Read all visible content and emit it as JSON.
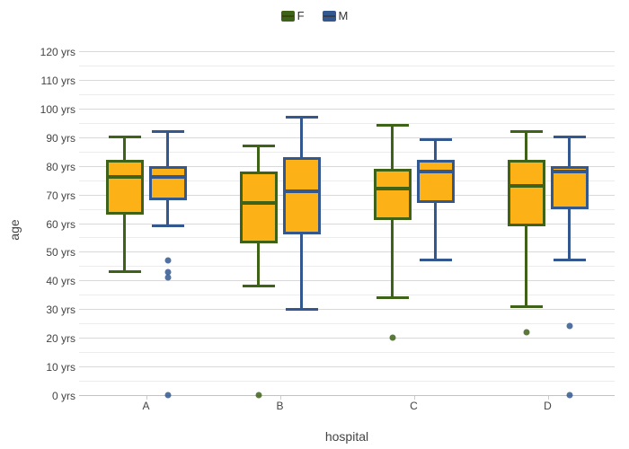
{
  "chart_data": {
    "type": "box",
    "title": "",
    "xlabel": "hospital",
    "ylabel": "age",
    "categories": [
      "A",
      "B",
      "C",
      "D"
    ],
    "ylim": [
      0,
      120
    ],
    "ytick_step": 10,
    "ytick_minor_step": 5,
    "ytick_suffix": " yrs",
    "grid": true,
    "legend_position": "top-center",
    "colors": {
      "box_fill": "#fcb116",
      "series_f_line": "#3d6218",
      "series_m_line": "#32588f",
      "gridline_major": "#d9d9d9",
      "gridline_minor": "#ececec"
    },
    "series": [
      {
        "name": "F",
        "line_color": "#3d6218",
        "fill_color": "#fcb116",
        "boxes": [
          {
            "category": "A",
            "low": 43,
            "q1": 63,
            "median": 76,
            "q3": 82,
            "high": 90,
            "outliers": []
          },
          {
            "category": "B",
            "low": 38,
            "q1": 53,
            "median": 67,
            "q3": 78,
            "high": 87,
            "outliers": [
              0
            ]
          },
          {
            "category": "C",
            "low": 34,
            "q1": 61,
            "median": 72,
            "q3": 79,
            "high": 94,
            "outliers": [
              20
            ]
          },
          {
            "category": "D",
            "low": 31,
            "q1": 59,
            "median": 73,
            "q3": 82,
            "high": 92,
            "outliers": [
              22
            ]
          }
        ]
      },
      {
        "name": "M",
        "line_color": "#32588f",
        "fill_color": "#fcb116",
        "boxes": [
          {
            "category": "A",
            "low": 59,
            "q1": 68,
            "median": 76,
            "q3": 80,
            "high": 92,
            "outliers": [
              47,
              43,
              41,
              0
            ]
          },
          {
            "category": "B",
            "low": 30,
            "q1": 56,
            "median": 71,
            "q3": 83,
            "high": 97,
            "outliers": []
          },
          {
            "category": "C",
            "low": 47,
            "q1": 67,
            "median": 78,
            "q3": 82,
            "high": 89,
            "outliers": []
          },
          {
            "category": "D",
            "low": 47,
            "q1": 65,
            "median": 78,
            "q3": 80,
            "high": 90,
            "outliers": [
              24,
              0
            ]
          }
        ]
      }
    ]
  }
}
